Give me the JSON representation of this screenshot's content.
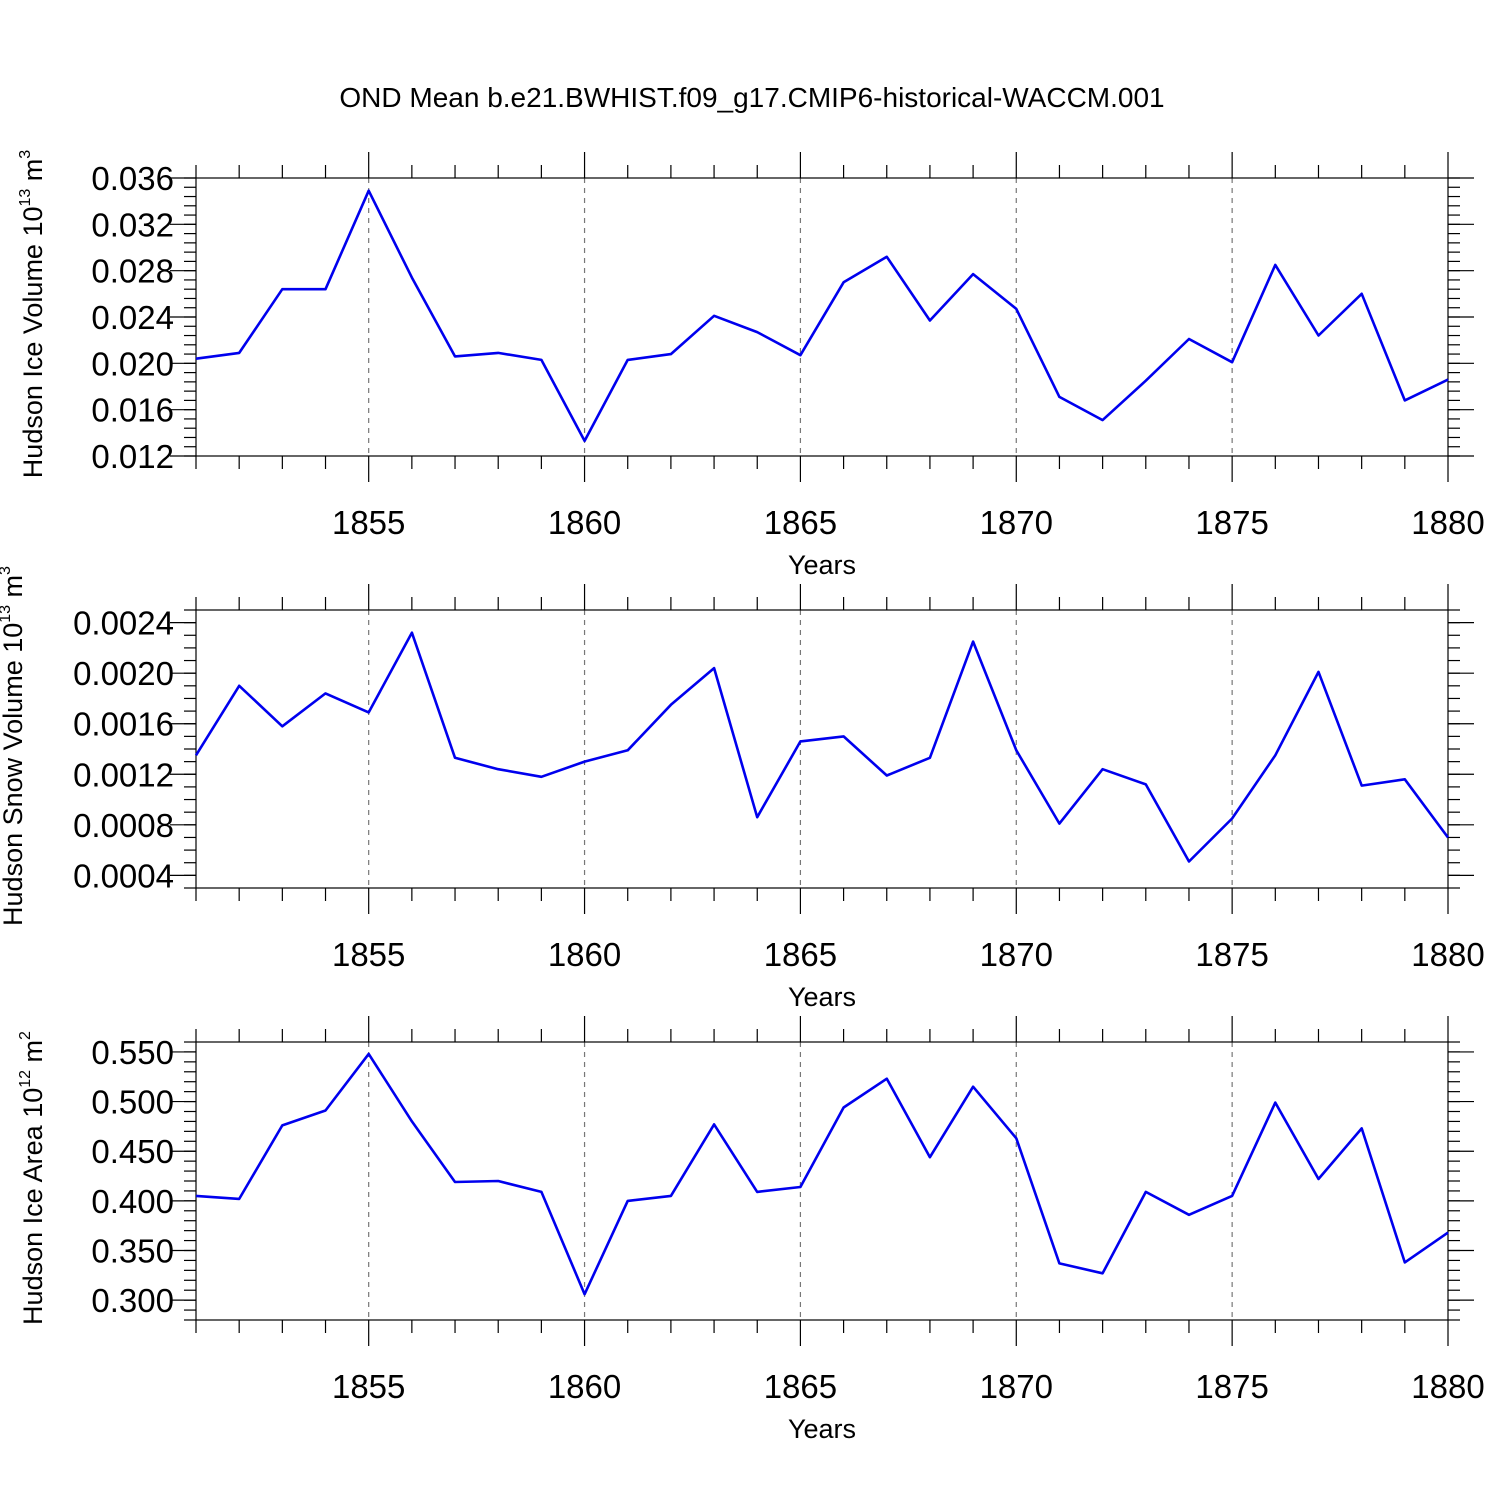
{
  "figure": {
    "title": "OND Mean b.e21.BWHIST.f09_g17.CMIP6-historical-WACCM.001"
  },
  "chart_data": [
    {
      "type": "line",
      "ylabel": "Hudson Ice Volume 10",
      "ylabel_exp": "13",
      "ylabel_unit": " m",
      "ylabel_unit_exp": "3",
      "xlabel": "Years",
      "xlim": [
        1851,
        1880
      ],
      "ylim": [
        0.012,
        0.036
      ],
      "y_major_ticks": [
        0.012,
        0.016,
        0.02,
        0.024,
        0.028,
        0.032,
        0.036
      ],
      "y_tick_labels": [
        "0.012",
        "0.016",
        "0.020",
        "0.024",
        "0.028",
        "0.032",
        "0.036"
      ],
      "y_minor_step": 0.0008,
      "x_major_ticks": [
        1855,
        1860,
        1865,
        1870,
        1875,
        1880
      ],
      "x_tick_labels": [
        "1855",
        "1860",
        "1865",
        "1870",
        "1875",
        "1880"
      ],
      "grid": "vertical dashed at major x ticks",
      "color": "#0000ee",
      "x": [
        1851,
        1852,
        1853,
        1854,
        1855,
        1856,
        1857,
        1858,
        1859,
        1860,
        1861,
        1862,
        1863,
        1864,
        1865,
        1866,
        1867,
        1868,
        1869,
        1870,
        1871,
        1872,
        1873,
        1874,
        1875,
        1876,
        1877,
        1878,
        1879,
        1880
      ],
      "values": [
        0.0204,
        0.0209,
        0.0264,
        0.0264,
        0.0349,
        0.0274,
        0.0206,
        0.0209,
        0.0203,
        0.0133,
        0.0203,
        0.0208,
        0.0241,
        0.0227,
        0.0207,
        0.027,
        0.0292,
        0.0237,
        0.0277,
        0.0247,
        0.0171,
        0.0151,
        0.0185,
        0.0221,
        0.0201,
        0.0285,
        0.0224,
        0.026,
        0.0168,
        0.0186
      ]
    },
    {
      "type": "line",
      "ylabel": "Hudson Snow Volume 10",
      "ylabel_exp": "13",
      "ylabel_unit": " m",
      "ylabel_unit_exp": "3",
      "xlabel": "Years",
      "xlim": [
        1851,
        1880
      ],
      "ylim": [
        0.0003,
        0.0025
      ],
      "y_major_ticks": [
        0.0004,
        0.0008,
        0.0012,
        0.0016,
        0.002,
        0.0024
      ],
      "y_tick_labels": [
        "0.0004",
        "0.0008",
        "0.0012",
        "0.0016",
        "0.0020",
        "0.0024"
      ],
      "y_minor_step": 0.0001,
      "x_major_ticks": [
        1855,
        1860,
        1865,
        1870,
        1875,
        1880
      ],
      "x_tick_labels": [
        "1855",
        "1860",
        "1865",
        "1870",
        "1875",
        "1880"
      ],
      "grid": "vertical dashed at major x ticks",
      "color": "#0000ee",
      "x": [
        1851,
        1852,
        1853,
        1854,
        1855,
        1856,
        1857,
        1858,
        1859,
        1860,
        1861,
        1862,
        1863,
        1864,
        1865,
        1866,
        1867,
        1868,
        1869,
        1870,
        1871,
        1872,
        1873,
        1874,
        1875,
        1876,
        1877,
        1878,
        1879,
        1880
      ],
      "values": [
        0.00135,
        0.0019,
        0.00158,
        0.00184,
        0.00169,
        0.00232,
        0.00133,
        0.00124,
        0.00118,
        0.0013,
        0.00139,
        0.00175,
        0.00204,
        0.00086,
        0.00146,
        0.0015,
        0.00119,
        0.00133,
        0.00225,
        0.00139,
        0.00081,
        0.00124,
        0.00112,
        0.00051,
        0.00085,
        0.00135,
        0.00201,
        0.00111,
        0.00116,
        0.0007
      ]
    },
    {
      "type": "line",
      "ylabel": "Hudson Ice Area 10",
      "ylabel_exp": "12",
      "ylabel_unit": " m",
      "ylabel_unit_exp": "2",
      "xlabel": "Years",
      "xlim": [
        1851,
        1880
      ],
      "ylim": [
        0.28,
        0.56
      ],
      "y_major_ticks": [
        0.3,
        0.35,
        0.4,
        0.45,
        0.5,
        0.55
      ],
      "y_tick_labels": [
        "0.300",
        "0.350",
        "0.400",
        "0.450",
        "0.500",
        "0.550"
      ],
      "y_minor_step": 0.01,
      "x_major_ticks": [
        1855,
        1860,
        1865,
        1870,
        1875,
        1880
      ],
      "x_tick_labels": [
        "1855",
        "1860",
        "1865",
        "1870",
        "1875",
        "1880"
      ],
      "grid": "vertical dashed at major x ticks",
      "color": "#0000ee",
      "x": [
        1851,
        1852,
        1853,
        1854,
        1855,
        1856,
        1857,
        1858,
        1859,
        1860,
        1861,
        1862,
        1863,
        1864,
        1865,
        1866,
        1867,
        1868,
        1869,
        1870,
        1871,
        1872,
        1873,
        1874,
        1875,
        1876,
        1877,
        1878,
        1879,
        1880
      ],
      "values": [
        0.405,
        0.402,
        0.476,
        0.491,
        0.548,
        0.48,
        0.419,
        0.42,
        0.409,
        0.306,
        0.4,
        0.405,
        0.477,
        0.409,
        0.414,
        0.494,
        0.523,
        0.444,
        0.515,
        0.463,
        0.337,
        0.327,
        0.409,
        0.386,
        0.405,
        0.499,
        0.422,
        0.473,
        0.338,
        0.368
      ]
    }
  ]
}
